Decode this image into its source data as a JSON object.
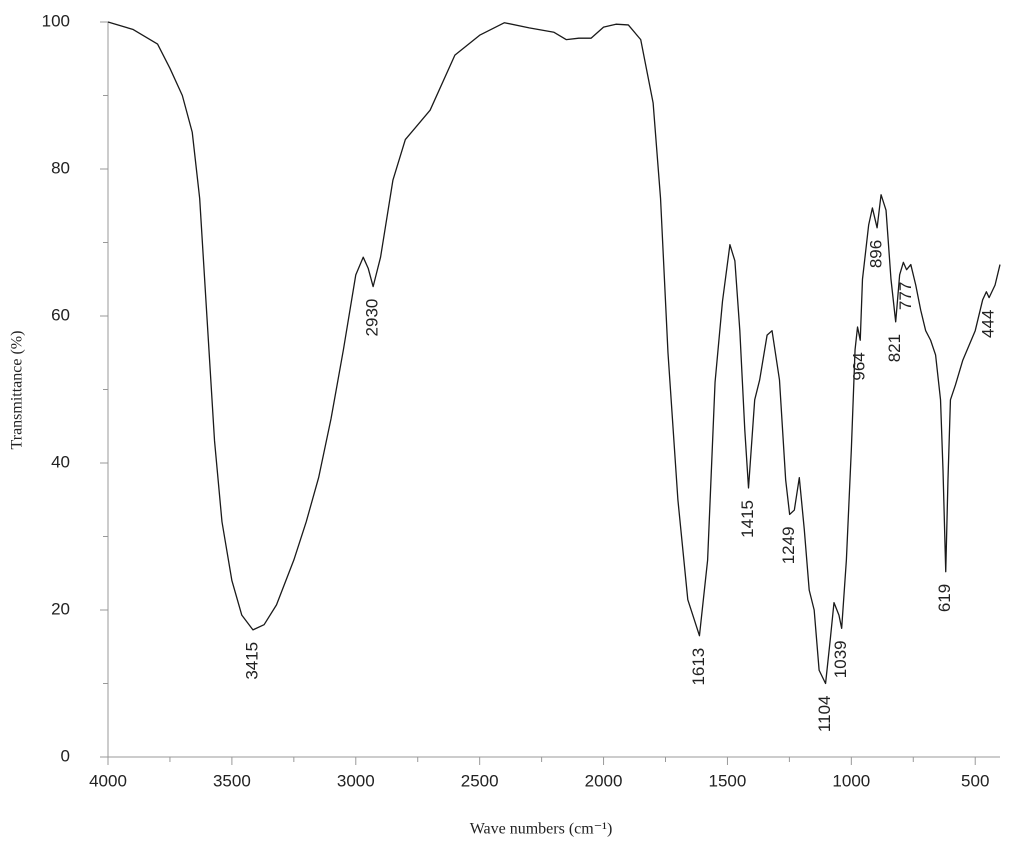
{
  "chart_data": {
    "type": "line",
    "xlabel": "Wave numbers (cm⁻¹)",
    "ylabel": "Transmittance (%)",
    "xlim": [
      4000,
      400
    ],
    "ylim": [
      0,
      100
    ],
    "xticks": [
      4000,
      3500,
      3000,
      2500,
      2000,
      1500,
      1000,
      500
    ],
    "xminorticks": [
      3750,
      3250,
      2750,
      2250,
      1750,
      1250,
      750
    ],
    "yticks": [
      0,
      20,
      40,
      60,
      80,
      100
    ],
    "yminorticks": [
      10,
      30,
      50,
      70,
      90
    ],
    "series": [
      {
        "color": "#1a1a1a",
        "x": [
          4000,
          3900,
          3800,
          3750,
          3700,
          3660,
          3630,
          3600,
          3570,
          3540,
          3500,
          3460,
          3415,
          3370,
          3320,
          3250,
          3200,
          3150,
          3100,
          3050,
          3000,
          2970,
          2950,
          2930,
          2900,
          2850,
          2800,
          2700,
          2600,
          2500,
          2400,
          2300,
          2200,
          2150,
          2100,
          2050,
          2000,
          1950,
          1900,
          1850,
          1800,
          1770,
          1740,
          1700,
          1660,
          1613,
          1580,
          1550,
          1520,
          1490,
          1470,
          1450,
          1430,
          1415,
          1390,
          1370,
          1340,
          1320,
          1290,
          1265,
          1249,
          1230,
          1210,
          1190,
          1170,
          1150,
          1130,
          1104,
          1085,
          1070,
          1050,
          1039,
          1020,
          1000,
          985,
          975,
          964,
          955,
          930,
          915,
          896,
          880,
          860,
          840,
          821,
          805,
          790,
          777,
          760,
          740,
          720,
          700,
          680,
          660,
          640,
          630,
          619,
          610,
          600,
          580,
          550,
          500,
          470,
          455,
          444,
          420,
          400
        ],
        "values": [
          100,
          99,
          97,
          93.7,
          90,
          85,
          76,
          59.5,
          43,
          32,
          24,
          19.3,
          17.3,
          18,
          20.7,
          26.8,
          32,
          38,
          46,
          55.4,
          65.6,
          68,
          66.5,
          64,
          68,
          78.5,
          84,
          88,
          95.5,
          98.2,
          99.9,
          99.2,
          98.6,
          97.6,
          97.8,
          97.8,
          99.3,
          99.7,
          99.6,
          97.6,
          89,
          76,
          55,
          35,
          21.4,
          16.5,
          26.8,
          51,
          62,
          69.7,
          67.5,
          58,
          44.5,
          36.6,
          48.6,
          51.3,
          57.4,
          58,
          51.3,
          37.7,
          33,
          33.6,
          38,
          31,
          22.7,
          20,
          11.8,
          10,
          16,
          21,
          19.3,
          17.5,
          26.8,
          41.8,
          55.4,
          58.5,
          56.7,
          65,
          72.4,
          74.7,
          72,
          76.5,
          74.4,
          65,
          59.2,
          65.6,
          67.3,
          66.3,
          67,
          64.2,
          60.8,
          58,
          56.7,
          54.7,
          48.6,
          39,
          25.2,
          37.7,
          48.6,
          50.6,
          54,
          58,
          62.2,
          63.3,
          62.5,
          64.2,
          67
        ]
      }
    ],
    "annotations": [
      {
        "text": "3415",
        "x": 3415
      },
      {
        "text": "2930",
        "x": 2930
      },
      {
        "text": "1613",
        "x": 1613
      },
      {
        "text": "1415",
        "x": 1415
      },
      {
        "text": "1249",
        "x": 1249
      },
      {
        "text": "1104",
        "x": 1104
      },
      {
        "text": "1039",
        "x": 1039
      },
      {
        "text": "964",
        "x": 964
      },
      {
        "text": "896",
        "x": 896
      },
      {
        "text": "821",
        "x": 821
      },
      {
        "text": "777",
        "x": 777
      },
      {
        "text": "619",
        "x": 619
      },
      {
        "text": "444",
        "x": 444
      }
    ]
  }
}
